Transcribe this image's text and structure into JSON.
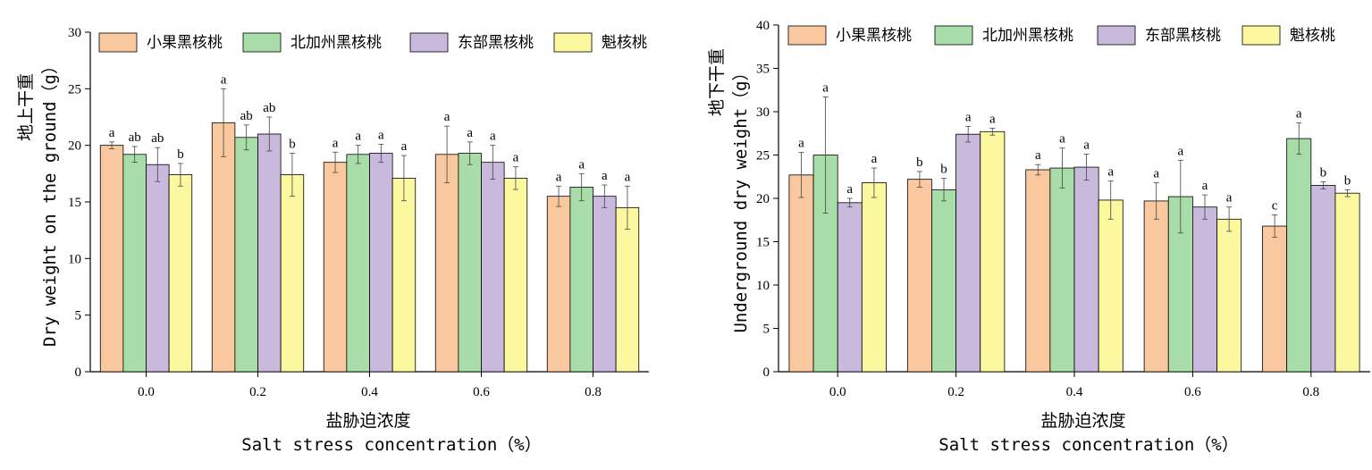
{
  "colors": {
    "series": [
      "#F9C89F",
      "#A8DCA8",
      "#C9B9DC",
      "#FBF8A0"
    ],
    "stroke": "#000000"
  },
  "chart_data": [
    {
      "type": "bar",
      "ylabel_cn": "地上干重",
      "ylabel_en": "Dry weight on the ground（g）",
      "xlabel_cn": "盐胁迫浓度",
      "xlabel_en": "Salt stress concentration（%）",
      "ylim": [
        0,
        30
      ],
      "yticks": [
        "0",
        "5",
        "10",
        "15",
        "20",
        "25",
        "30"
      ],
      "categories": [
        "0.0",
        "0.2",
        "0.4",
        "0.6",
        "0.8"
      ],
      "legend_position": "top",
      "series": [
        {
          "name": "小果黑核桃",
          "values": [
            20.0,
            22.0,
            18.5,
            19.2,
            15.5
          ],
          "errors": [
            0.3,
            3.0,
            0.9,
            2.5,
            0.9
          ],
          "labels": [
            "a",
            "a",
            "a",
            "a",
            "a"
          ]
        },
        {
          "name": "北加州黑核桃",
          "values": [
            19.2,
            20.7,
            19.2,
            19.3,
            16.3
          ],
          "errors": [
            0.7,
            1.1,
            0.8,
            1.0,
            1.2
          ],
          "labels": [
            "ab",
            "ab",
            "a",
            "a",
            "a"
          ]
        },
        {
          "name": "东部黑核桃",
          "values": [
            18.3,
            21.0,
            19.3,
            18.5,
            15.5
          ],
          "errors": [
            1.5,
            1.5,
            0.8,
            1.5,
            1.0
          ],
          "labels": [
            "ab",
            "ab",
            "a",
            "a",
            "a"
          ]
        },
        {
          "name": "魁核桃",
          "values": [
            17.4,
            17.4,
            17.1,
            17.1,
            14.5
          ],
          "errors": [
            1.0,
            1.9,
            2.0,
            1.0,
            1.9
          ],
          "labels": [
            "b",
            "b",
            "a",
            "a",
            "a"
          ]
        }
      ]
    },
    {
      "type": "bar",
      "ylabel_cn": "地下干重",
      "ylabel_en": "Underground dry weight（g）",
      "xlabel_cn": "盐胁迫浓度",
      "xlabel_en": "Salt stress concentration（%）",
      "ylim": [
        0,
        40
      ],
      "yticks": [
        "0",
        "5",
        "10",
        "15",
        "20",
        "25",
        "30",
        "35",
        "40"
      ],
      "categories": [
        "0.0",
        "0.2",
        "0.4",
        "0.6",
        "0.8"
      ],
      "legend_position": "top",
      "series": [
        {
          "name": "小果黑核桃",
          "values": [
            22.7,
            22.2,
            23.3,
            19.7,
            16.8
          ],
          "errors": [
            2.6,
            0.9,
            0.6,
            2.1,
            1.3
          ],
          "labels": [
            "a",
            "b",
            "a",
            "a",
            "c"
          ]
        },
        {
          "name": "北加州黑核桃",
          "values": [
            25.0,
            21.0,
            23.5,
            20.2,
            26.9
          ],
          "errors": [
            6.7,
            1.3,
            2.3,
            4.2,
            1.8
          ],
          "labels": [
            "a",
            "b",
            "a",
            "a",
            "a"
          ]
        },
        {
          "name": "东部黑核桃",
          "values": [
            19.5,
            27.4,
            23.6,
            19.0,
            21.5
          ],
          "errors": [
            0.5,
            0.9,
            1.5,
            1.4,
            0.4
          ],
          "labels": [
            "a",
            "a",
            "a",
            "a",
            "b"
          ]
        },
        {
          "name": "魁核桃",
          "values": [
            21.8,
            27.7,
            19.8,
            17.6,
            20.6
          ],
          "errors": [
            1.7,
            0.4,
            2.2,
            1.4,
            0.4
          ],
          "labels": [
            "a",
            "a",
            "a",
            "a",
            "b"
          ]
        }
      ]
    }
  ]
}
